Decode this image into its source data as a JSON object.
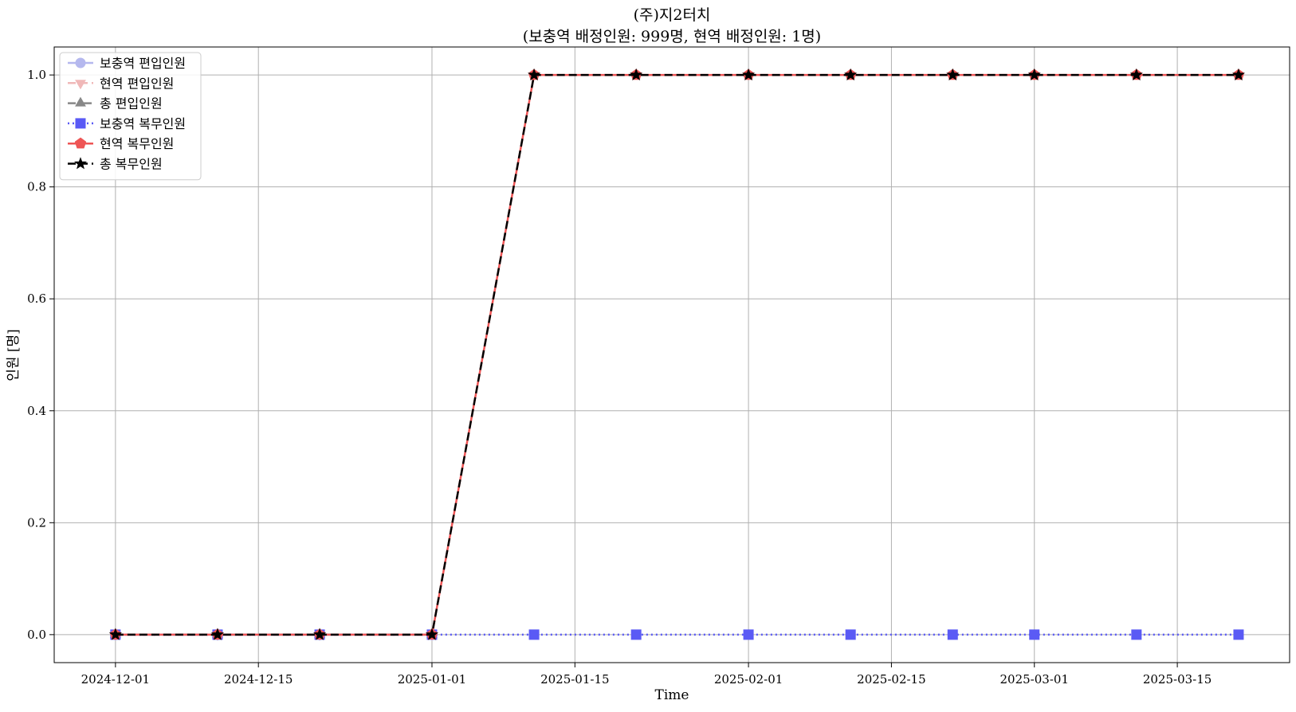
{
  "chart_data": {
    "type": "line",
    "title": "(주)지2터치",
    "subtitle": "(보충역 배정인원: 999명, 현역 배정인원: 1명)",
    "xlabel": "Time",
    "ylabel": "인원 [명]",
    "x_axis_type": "date",
    "xlim": [
      "2024-11-25",
      "2025-03-26"
    ],
    "ylim": [
      -0.05,
      1.05
    ],
    "xticks": [
      "2024-12-01",
      "2024-12-15",
      "2025-01-01",
      "2025-01-15",
      "2025-02-01",
      "2025-02-15",
      "2025-03-01",
      "2025-03-15"
    ],
    "yticks": [
      "0.0",
      "0.2",
      "0.4",
      "0.6",
      "0.8",
      "1.0"
    ],
    "grid": true,
    "legend_position": "top-left",
    "x": [
      "2024-12-01",
      "2024-12-11",
      "2024-12-21",
      "2025-01-01",
      "2025-01-11",
      "2025-01-21",
      "2025-02-01",
      "2025-02-11",
      "2025-02-21",
      "2025-03-01",
      "2025-03-11",
      "2025-03-21"
    ],
    "series": [
      {
        "name": "보충역 편입인원",
        "values": [
          0,
          0,
          0,
          0,
          null,
          null,
          null,
          null,
          null,
          null,
          null,
          null
        ],
        "color": "#b5b8ee",
        "dash": "solid",
        "marker": "circle"
      },
      {
        "name": "현역 편입인원",
        "values": [
          0,
          0,
          0,
          0,
          null,
          null,
          null,
          null,
          null,
          null,
          null,
          null
        ],
        "color": "#f0b8b8",
        "dash": "dashed",
        "marker": "triangle-down"
      },
      {
        "name": "총 편입인원",
        "values": [
          0,
          0,
          0,
          0,
          null,
          null,
          null,
          null,
          null,
          null,
          null,
          null
        ],
        "color": "#888888",
        "dash": "dashdot",
        "marker": "triangle-up"
      },
      {
        "name": "보충역 복무인원",
        "values": [
          0,
          0,
          0,
          0,
          0,
          0,
          0,
          0,
          0,
          0,
          0,
          0
        ],
        "color": "#5a5af5",
        "dash": "dotted",
        "marker": "square"
      },
      {
        "name": "현역 복무인원",
        "values": [
          0,
          0,
          0,
          0,
          1,
          1,
          1,
          1,
          1,
          1,
          1,
          1
        ],
        "color": "#ee5555",
        "dash": "solid",
        "marker": "pentagon"
      },
      {
        "name": "총 복무인원",
        "values": [
          0,
          0,
          0,
          0,
          1,
          1,
          1,
          1,
          1,
          1,
          1,
          1
        ],
        "color": "#000000",
        "dash": "dashed",
        "marker": "star"
      }
    ]
  }
}
